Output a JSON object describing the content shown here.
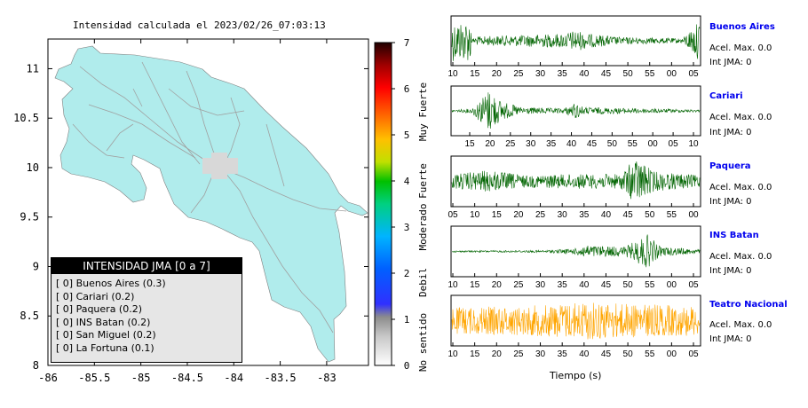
{
  "map": {
    "title": "Intensidad calculada el 2023/02/26_07:03:13",
    "x_ticks": [
      "-86",
      "-85.5",
      "-85",
      "-84.5",
      "-84",
      "-83.5",
      "-83"
    ],
    "y_ticks": [
      "11",
      "10.5",
      "10",
      "9.5",
      "9",
      "8.5",
      "8"
    ],
    "xlim": [
      -86,
      -82.55
    ],
    "ylim": [
      8,
      11.3
    ],
    "land_color": "#b0ecec",
    "legend": {
      "header": "INTENSIDAD JMA [0 a 7]",
      "rows": [
        "[ 0] Buenos Aires (0.3)",
        "[ 0] Cariari (0.2)",
        "[ 0] Paquera (0.2)",
        "[ 0] INS Batan (0.2)",
        "[ 0] San Miguel (0.2)",
        "[ 0] La Fortuna (0.1)"
      ]
    }
  },
  "colorbar": {
    "ticks": [
      "0",
      "1",
      "2",
      "3",
      "4",
      "5",
      "6",
      "7"
    ],
    "labels": [
      "No sentido",
      "Debil",
      "Moderado",
      "Fuerte",
      "Muy Fuerte"
    ]
  },
  "chart_data": {
    "type": "line",
    "xlabel": "Tiempo (s)",
    "stations": [
      {
        "name": "Buenos Aires",
        "acel": "Acel. Max. 0.0",
        "int": "Int JMA: 0",
        "color": "#006400",
        "ticks": [
          "10",
          "15",
          "20",
          "25",
          "30",
          "35",
          "40",
          "45",
          "50",
          "55",
          "00",
          "05"
        ]
      },
      {
        "name": "Cariari",
        "acel": "Acel. Max. 0.0",
        "int": "Int JMA: 0",
        "color": "#006400",
        "ticks": [
          "15",
          "20",
          "25",
          "30",
          "35",
          "40",
          "45",
          "50",
          "55",
          "00",
          "05",
          "10"
        ]
      },
      {
        "name": "Paquera",
        "acel": "Acel. Max. 0.0",
        "int": "Int JMA: 0",
        "color": "#006400",
        "ticks": [
          "05",
          "10",
          "15",
          "20",
          "25",
          "30",
          "35",
          "40",
          "45",
          "50",
          "55",
          "00"
        ]
      },
      {
        "name": "INS Batan",
        "acel": "Acel. Max. 0.0",
        "int": "Int JMA: 0",
        "color": "#006400",
        "ticks": [
          "10",
          "15",
          "20",
          "25",
          "30",
          "35",
          "40",
          "45",
          "50",
          "55",
          "00",
          "05"
        ]
      },
      {
        "name": "Teatro Nacional",
        "acel": "Acel. Max. 0.0",
        "int": "Int JMA: 0",
        "color": "#ffa500",
        "ticks": [
          "10",
          "15",
          "20",
          "25",
          "30",
          "35",
          "40",
          "45",
          "50",
          "55",
          "00",
          "05"
        ]
      }
    ]
  }
}
